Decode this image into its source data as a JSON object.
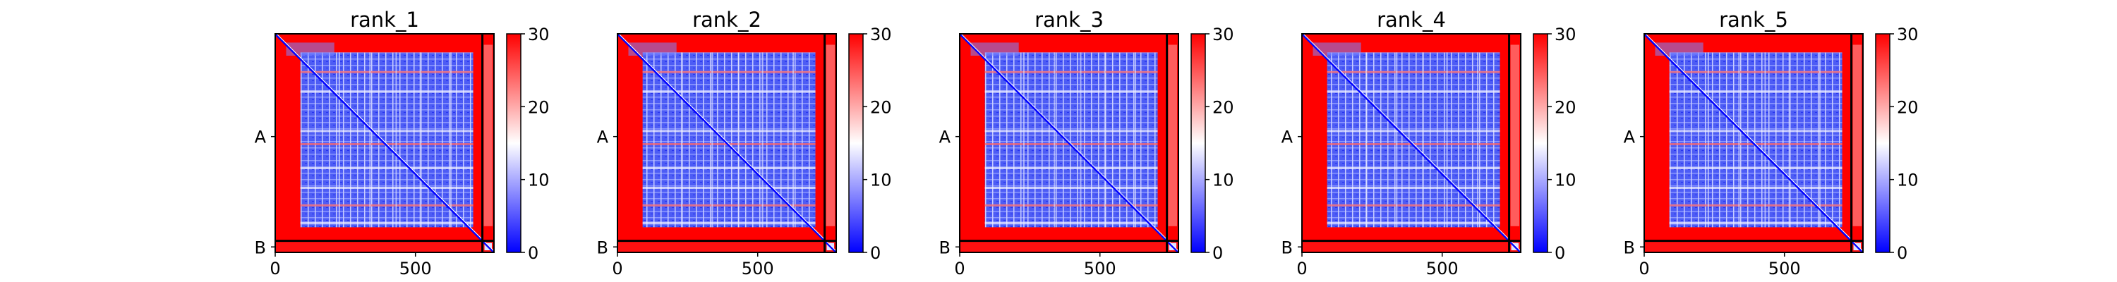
{
  "chart_data": [
    {
      "type": "heatmap",
      "title": "rank_1",
      "xticks": [
        0,
        500
      ],
      "chains": [
        "A",
        "B"
      ],
      "colorbar": {
        "min": 0,
        "max": 30,
        "ticks": [
          0,
          10,
          20,
          30
        ]
      },
      "vmin": 0,
      "vmax": 30,
      "xlim": [
        0,
        780
      ],
      "ylim": [
        780,
        0
      ]
    },
    {
      "type": "heatmap",
      "title": "rank_2",
      "xticks": [
        0,
        500
      ],
      "chains": [
        "A",
        "B"
      ],
      "colorbar": {
        "min": 0,
        "max": 30,
        "ticks": [
          0,
          10,
          20,
          30
        ]
      },
      "vmin": 0,
      "vmax": 30,
      "xlim": [
        0,
        780
      ],
      "ylim": [
        780,
        0
      ]
    },
    {
      "type": "heatmap",
      "title": "rank_3",
      "xticks": [
        0,
        500
      ],
      "chains": [
        "A",
        "B"
      ],
      "colorbar": {
        "min": 0,
        "max": 30,
        "ticks": [
          0,
          10,
          20,
          30
        ]
      },
      "vmin": 0,
      "vmax": 30,
      "xlim": [
        0,
        780
      ],
      "ylim": [
        780,
        0
      ]
    },
    {
      "type": "heatmap",
      "title": "rank_4",
      "xticks": [
        0,
        500
      ],
      "chains": [
        "A",
        "B"
      ],
      "colorbar": {
        "min": 0,
        "max": 30,
        "ticks": [
          0,
          10,
          20,
          30
        ]
      },
      "vmin": 0,
      "vmax": 30,
      "xlim": [
        0,
        780
      ],
      "ylim": [
        780,
        0
      ]
    },
    {
      "type": "heatmap",
      "title": "rank_5",
      "xticks": [
        0,
        500
      ],
      "chains": [
        "A",
        "B"
      ],
      "colorbar": {
        "min": 0,
        "max": 30,
        "ticks": [
          0,
          10,
          20,
          30
        ]
      },
      "vmin": 0,
      "vmax": 30,
      "xlim": [
        0,
        780
      ],
      "ylim": [
        780,
        0
      ]
    }
  ],
  "colors": {
    "low": "#0000ff",
    "mid": "#ffffff",
    "high": "#ff0000",
    "boundary": "#000000"
  }
}
